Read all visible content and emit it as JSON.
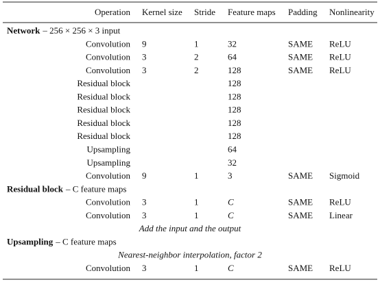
{
  "table": {
    "header": [
      "Operation",
      "Kernel size",
      "Stride",
      "Feature maps",
      "Padding",
      "Nonlinearity"
    ],
    "sections": [
      {
        "title": "Network",
        "subtitle": "– 256 × 256 × 3 input",
        "rows": [
          [
            "Convolution",
            "9",
            "1",
            "32",
            "SAME",
            "ReLU"
          ],
          [
            "Convolution",
            "3",
            "2",
            "64",
            "SAME",
            "ReLU"
          ],
          [
            "Convolution",
            "3",
            "2",
            "128",
            "SAME",
            "ReLU"
          ],
          [
            "Residual block",
            null,
            null,
            "128",
            null,
            null
          ],
          [
            "Residual block",
            null,
            null,
            "128",
            null,
            null
          ],
          [
            "Residual block",
            null,
            null,
            "128",
            null,
            null
          ],
          [
            "Residual block",
            null,
            null,
            "128",
            null,
            null
          ],
          [
            "Residual block",
            null,
            null,
            "128",
            null,
            null
          ],
          [
            "Upsampling",
            null,
            null,
            "64",
            null,
            null
          ],
          [
            "Upsampling",
            null,
            null,
            "32",
            null,
            null
          ],
          [
            "Convolution",
            "9",
            "1",
            "3",
            "SAME",
            "Sigmoid"
          ]
        ]
      },
      {
        "title": "Residual block",
        "subtitle": "– C feature maps",
        "rows": [
          [
            "Convolution",
            "3",
            "1",
            "C",
            "SAME",
            "ReLU"
          ],
          [
            "Convolution",
            "3",
            "1",
            "C",
            "SAME",
            "Linear"
          ],
          {
            "note": "Add the input and the output"
          }
        ]
      },
      {
        "title": "Upsampling",
        "subtitle": "– C feature maps",
        "rows": [
          {
            "note": "Nearest-neighbor interpolation, factor 2"
          },
          [
            "Convolution",
            "3",
            "1",
            "C",
            "SAME",
            "ReLU"
          ]
        ]
      }
    ]
  }
}
